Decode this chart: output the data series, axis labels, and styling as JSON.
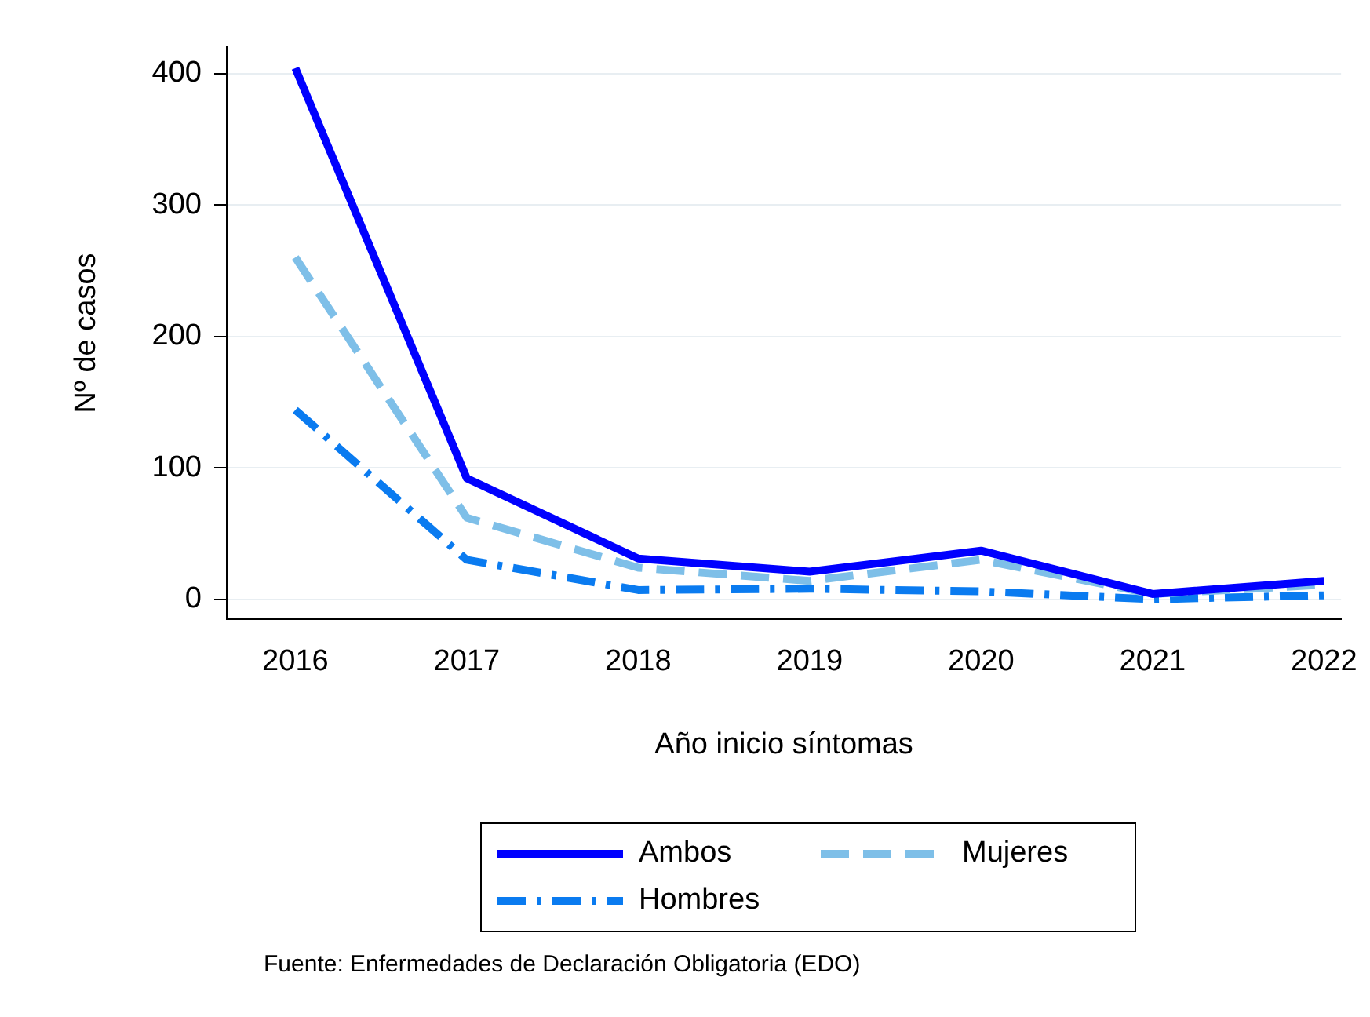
{
  "chart_data": {
    "type": "line",
    "xlabel": "Año inicio síntomas",
    "ylabel": "Nº de casos",
    "x": [
      2016,
      2017,
      2018,
      2019,
      2020,
      2021,
      2022
    ],
    "xlim": [
      2015.6,
      2022.1
    ],
    "xticks": [
      2016,
      2017,
      2018,
      2019,
      2020,
      2021,
      2022
    ],
    "ylim": [
      -15,
      420
    ],
    "yticks": [
      0,
      100,
      200,
      300,
      400
    ],
    "grid": "y",
    "legend": "bottom",
    "marker": "none",
    "series": [
      {
        "name": "Ambos",
        "color": "#0000ff",
        "line_style": "solid",
        "values": [
          404,
          92,
          31,
          21,
          37,
          4,
          14
        ]
      },
      {
        "name": "Mujeres",
        "color": "#7ebfe8",
        "line_style": "dashed",
        "values": [
          260,
          62,
          24,
          14,
          30,
          4,
          11
        ]
      },
      {
        "name": "Hombres",
        "color": "#0a7bf0",
        "line_style": "dashdot",
        "values": [
          144,
          30,
          7,
          8,
          6,
          0,
          3
        ]
      }
    ],
    "annotations": [
      "Fuente: Enfermedades de Declaración Obligatoria (EDO)"
    ]
  }
}
